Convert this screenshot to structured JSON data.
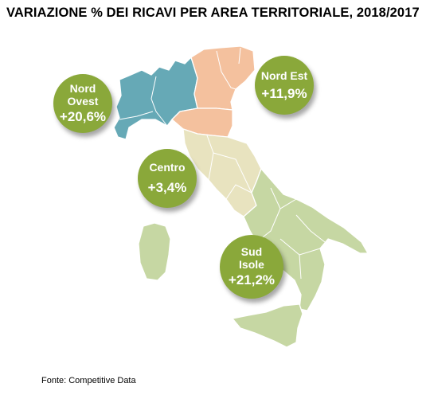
{
  "title": "VARIAZIONE % DEI RICAVI PER AREA TERRITORIALE, 2018/2017",
  "source": "Fonte: Competitive Data",
  "colors": {
    "nord_ovest": "#66a9b6",
    "nord_est": "#f4c19e",
    "emilia": "#f4c19e",
    "centro": "#e8e3bf",
    "sud_isole": "#c6d7a3",
    "borders": "#ffffff",
    "bubble": "#8aa83a"
  },
  "regions": [
    {
      "name_line1": "Nord",
      "name_line2": "Ovest",
      "value": "+20,6%"
    },
    {
      "name_line1": "Nord Est",
      "name_line2": "",
      "value": "+11,9%"
    },
    {
      "name_line1": "Centro",
      "name_line2": "",
      "value": "+3,4%"
    },
    {
      "name_line1": "Sud",
      "name_line2": "Isole",
      "value": "+21,2%"
    }
  ]
}
